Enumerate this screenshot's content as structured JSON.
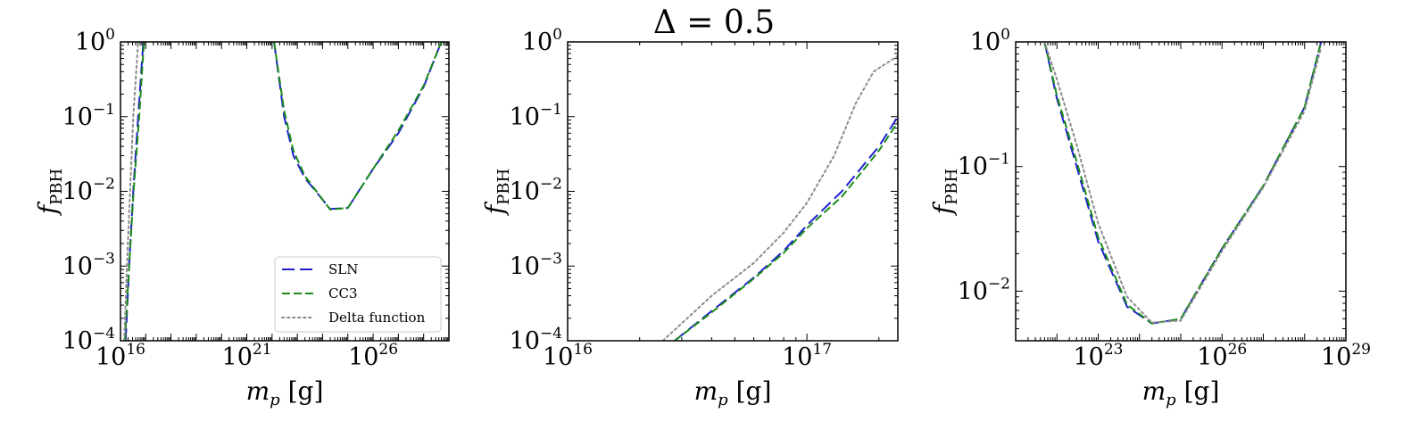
{
  "figure": {
    "suptitle": "Δ = 0.5"
  },
  "colors": {
    "SLN": "#1f1fd0",
    "CC3": "#1a8a1a",
    "Delta function": "#8c8c8c"
  },
  "chart_data": [
    {
      "type": "line",
      "xscale": "log",
      "yscale": "log",
      "xlabel": "m_p [g]",
      "ylabel": "f_PBH",
      "xlim": [
        1e+16,
        1e+29
      ],
      "ylim": [
        0.0001,
        1
      ],
      "xticks": [
        {
          "value": 1e+16,
          "base": "10",
          "exp": "16"
        },
        {
          "value": 1e+21,
          "base": "10",
          "exp": "21"
        },
        {
          "value": 1e+26,
          "base": "10",
          "exp": "26"
        }
      ],
      "yticks": [
        {
          "value": 1,
          "base": "10",
          "exp": "0"
        },
        {
          "value": 0.1,
          "base": "10",
          "exp": "−1"
        },
        {
          "value": 0.01,
          "base": "10",
          "exp": "−2"
        },
        {
          "value": 0.001,
          "base": "10",
          "exp": "−3"
        },
        {
          "value": 0.0001,
          "base": "10",
          "exp": "−4"
        }
      ],
      "legend": {
        "location": "lower-right",
        "entries": [
          "SLN",
          "CC3",
          "Delta function"
        ]
      },
      "series": [
        {
          "name": "SLN",
          "style": "dashed-long",
          "segments": [
            [
              [
                1.6e+16,
                0.0001
              ],
              [
                2.2e+16,
                0.001
              ],
              [
                3.2e+16,
                0.01
              ],
              [
                5e+16,
                0.1
              ],
              [
                8e+16,
                1
              ]
            ],
            [
              [
                1.2e+22,
                1
              ],
              [
                3e+22,
                0.1
              ],
              [
                7e+22,
                0.03
              ],
              [
                2e+23,
                0.015
              ],
              [
                2e+24,
                0.0058
              ],
              [
                1e+25,
                0.006
              ],
              [
                1e+26,
                0.02
              ],
              [
                1e+27,
                0.06
              ],
              [
                1e+28,
                0.25
              ],
              [
                5e+28,
                1
              ]
            ]
          ]
        },
        {
          "name": "CC3",
          "style": "dashed",
          "segments": [
            [
              [
                1.5e+16,
                0.0001
              ],
              [
                2.2e+16,
                0.001
              ],
              [
                3.3e+16,
                0.01
              ],
              [
                5.5e+16,
                0.1
              ],
              [
                8.5e+16,
                1
              ]
            ],
            [
              [
                1.2e+22,
                1
              ],
              [
                3e+22,
                0.12
              ],
              [
                7e+22,
                0.035
              ],
              [
                2e+23,
                0.016
              ],
              [
                2e+24,
                0.0057
              ],
              [
                1e+25,
                0.006
              ],
              [
                1e+26,
                0.02
              ],
              [
                1e+27,
                0.065
              ],
              [
                1e+28,
                0.26
              ],
              [
                5e+28,
                1
              ]
            ]
          ]
        },
        {
          "name": "Delta function",
          "style": "dotted",
          "segments": [
            [
              [
                1.4e+16,
                0.0001
              ],
              [
                1.8e+16,
                0.001
              ],
              [
                2.4e+16,
                0.01
              ],
              [
                3.2e+16,
                0.1
              ],
              [
                5e+16,
                1
              ]
            ]
          ]
        }
      ]
    },
    {
      "type": "line",
      "xscale": "log",
      "yscale": "log",
      "xlabel": "m_p [g]",
      "ylabel": "f_PBH",
      "xlim": [
        1e+16,
        2.4e+17
      ],
      "ylim": [
        0.0001,
        1
      ],
      "xticks": [
        {
          "value": 1e+16,
          "base": "10",
          "exp": "16"
        },
        {
          "value": 1e+17,
          "base": "10",
          "exp": "17"
        }
      ],
      "yticks": [
        {
          "value": 1,
          "base": "10",
          "exp": "0"
        },
        {
          "value": 0.1,
          "base": "10",
          "exp": "−1"
        },
        {
          "value": 0.01,
          "base": "10",
          "exp": "−2"
        },
        {
          "value": 0.001,
          "base": "10",
          "exp": "−3"
        },
        {
          "value": 0.0001,
          "base": "10",
          "exp": "−4"
        }
      ],
      "series": [
        {
          "name": "SLN",
          "style": "dashed-long",
          "segments": [
            [
              [
                2.8e+16,
                0.0001
              ],
              [
                4e+16,
                0.00025
              ],
              [
                6e+16,
                0.0007
              ],
              [
                8e+16,
                0.0016
              ],
              [
                1e+17,
                0.0035
              ],
              [
                1.4e+17,
                0.01
              ],
              [
                2e+17,
                0.04
              ],
              [
                2.4e+17,
                0.1
              ]
            ]
          ]
        },
        {
          "name": "CC3",
          "style": "dashed",
          "segments": [
            [
              [
                2.8e+16,
                0.0001
              ],
              [
                4e+16,
                0.00024
              ],
              [
                6e+16,
                0.00068
              ],
              [
                8e+16,
                0.0015
              ],
              [
                1e+17,
                0.0032
              ],
              [
                1.4e+17,
                0.0085
              ],
              [
                2e+17,
                0.035
              ],
              [
                2.4e+17,
                0.085
              ]
            ]
          ]
        },
        {
          "name": "Delta function",
          "style": "dotted",
          "segments": [
            [
              [
                2.5e+16,
                0.0001
              ],
              [
                4e+16,
                0.0004
              ],
              [
                6e+16,
                0.0011
              ],
              [
                8e+16,
                0.0028
              ],
              [
                1e+17,
                0.007
              ],
              [
                1.3e+17,
                0.03
              ],
              [
                1.6e+17,
                0.15
              ],
              [
                1.9e+17,
                0.4
              ],
              [
                2.4e+17,
                0.65
              ]
            ]
          ]
        }
      ]
    },
    {
      "type": "line",
      "xscale": "log",
      "yscale": "log",
      "xlabel": "m_p [g]",
      "ylabel": "f_PBH",
      "xlim": [
        1e+21,
        1e+29
      ],
      "ylim": [
        0.004,
        1
      ],
      "xticks": [
        {
          "value": 1e+23,
          "base": "10",
          "exp": "23"
        },
        {
          "value": 1e+26,
          "base": "10",
          "exp": "26"
        },
        {
          "value": 1e+29,
          "base": "10",
          "exp": "29"
        }
      ],
      "yticks": [
        {
          "value": 1,
          "base": "10",
          "exp": "0"
        },
        {
          "value": 0.1,
          "base": "10",
          "exp": "−1"
        },
        {
          "value": 0.01,
          "base": "10",
          "exp": "−2"
        }
      ],
      "series": [
        {
          "name": "SLN",
          "style": "dashed-long",
          "segments": [
            [
              [
                5e+21,
                1
              ],
              [
                1e+22,
                0.35
              ],
              [
                3e+22,
                0.1
              ],
              [
                1e+23,
                0.025
              ],
              [
                5e+23,
                0.0075
              ],
              [
                2e+24,
                0.0055
              ],
              [
                1e+25,
                0.006
              ],
              [
                1e+26,
                0.022
              ],
              [
                1e+27,
                0.07
              ],
              [
                1e+28,
                0.3
              ],
              [
                2.5e+28,
                1
              ]
            ]
          ]
        },
        {
          "name": "CC3",
          "style": "dashed",
          "segments": [
            [
              [
                5e+21,
                1
              ],
              [
                1e+22,
                0.37
              ],
              [
                3e+22,
                0.11
              ],
              [
                1e+23,
                0.027
              ],
              [
                5e+23,
                0.0078
              ],
              [
                2e+24,
                0.0055
              ],
              [
                1e+25,
                0.006
              ],
              [
                1e+26,
                0.022
              ],
              [
                1e+27,
                0.07
              ],
              [
                1e+28,
                0.3
              ],
              [
                2.5e+28,
                1
              ]
            ]
          ]
        },
        {
          "name": "Delta function",
          "style": "dotted",
          "segments": [
            [
              [
                5e+21,
                1
              ],
              [
                1e+22,
                0.5
              ],
              [
                3e+22,
                0.15
              ],
              [
                1e+23,
                0.035
              ],
              [
                5e+23,
                0.009
              ],
              [
                2e+24,
                0.0056
              ],
              [
                1e+25,
                0.0058
              ],
              [
                1e+26,
                0.021
              ],
              [
                1e+27,
                0.068
              ],
              [
                1e+28,
                0.28
              ],
              [
                2.5e+28,
                0.9
              ]
            ]
          ]
        }
      ]
    }
  ]
}
